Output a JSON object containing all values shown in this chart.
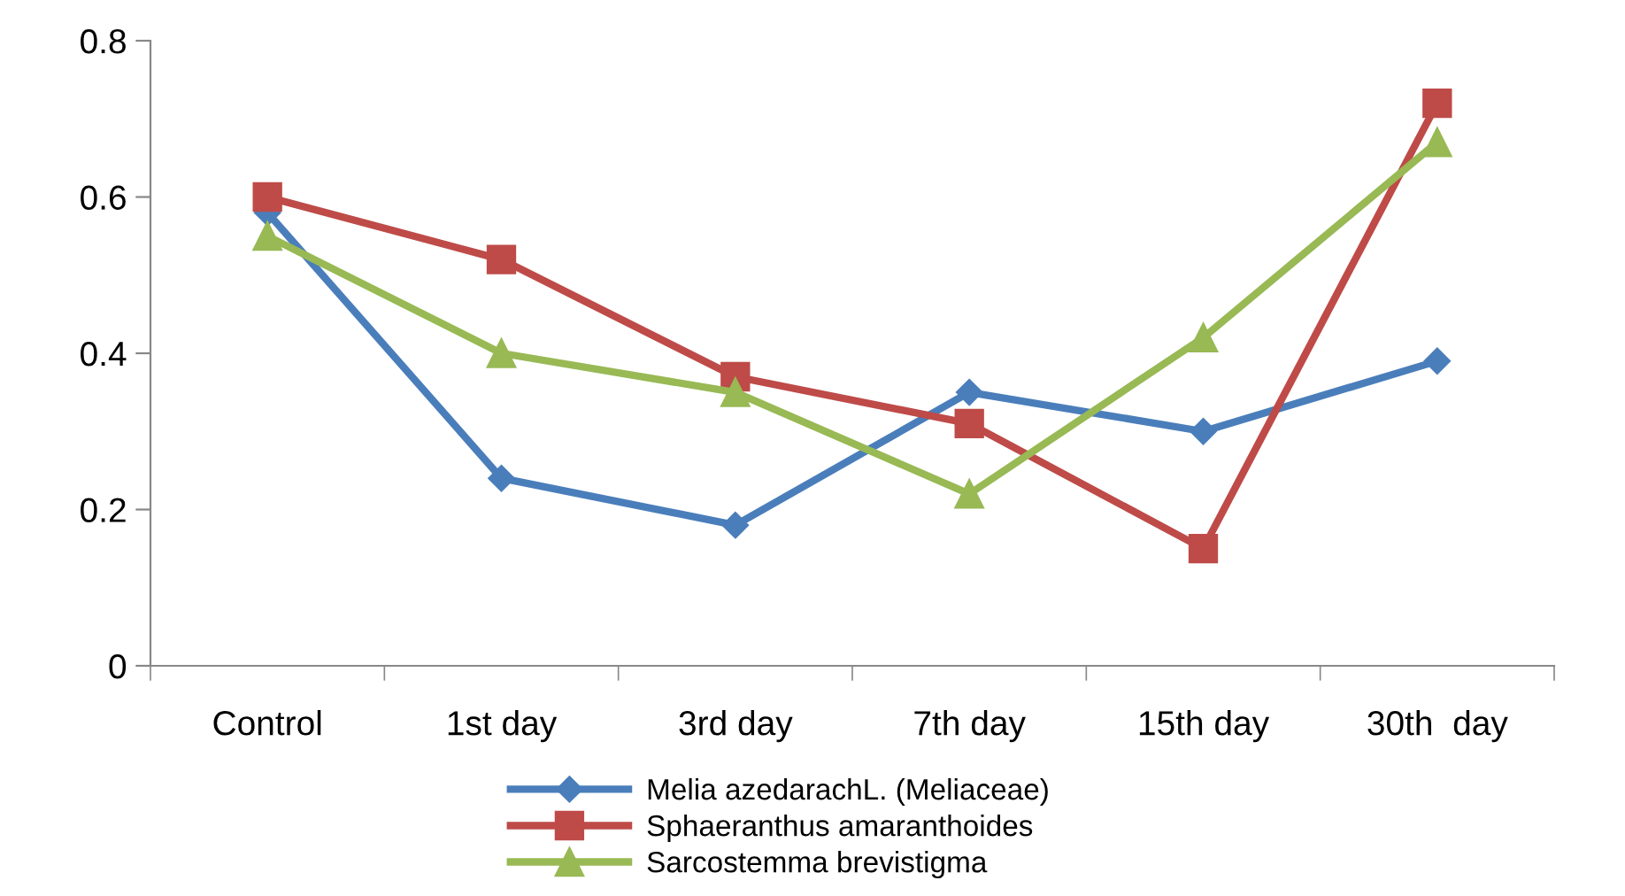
{
  "chart_data": {
    "type": "line",
    "categories": [
      "Control",
      "1st day",
      "3rd day",
      "7th day",
      "15th day",
      "30th  day"
    ],
    "series": [
      {
        "name": "Melia azedarachL. (Meliaceae)",
        "color": "#4a7ebb",
        "marker": "diamond",
        "values": [
          0.58,
          0.24,
          0.18,
          0.35,
          0.3,
          0.39
        ]
      },
      {
        "name": "Sphaeranthus amaranthoides",
        "color": "#be4b48",
        "marker": "square",
        "values": [
          0.6,
          0.52,
          0.37,
          0.31,
          0.15,
          0.72
        ]
      },
      {
        "name": "Sarcostemma brevistigma",
        "color": "#98b954",
        "marker": "triangle",
        "values": [
          0.55,
          0.4,
          0.35,
          0.22,
          0.42,
          0.67
        ]
      }
    ],
    "ylim": [
      0,
      0.8
    ],
    "yticks": [
      0,
      {
        "value": 0.2,
        "label": "0.2"
      },
      {
        "value": 0.4,
        "label": "0.4"
      },
      {
        "value": 0.6,
        "label": "0.6"
      },
      {
        "value": 0.8,
        "label": "0.8"
      }
    ],
    "grid": false,
    "legend": "bottom",
    "line_style": "solid"
  }
}
